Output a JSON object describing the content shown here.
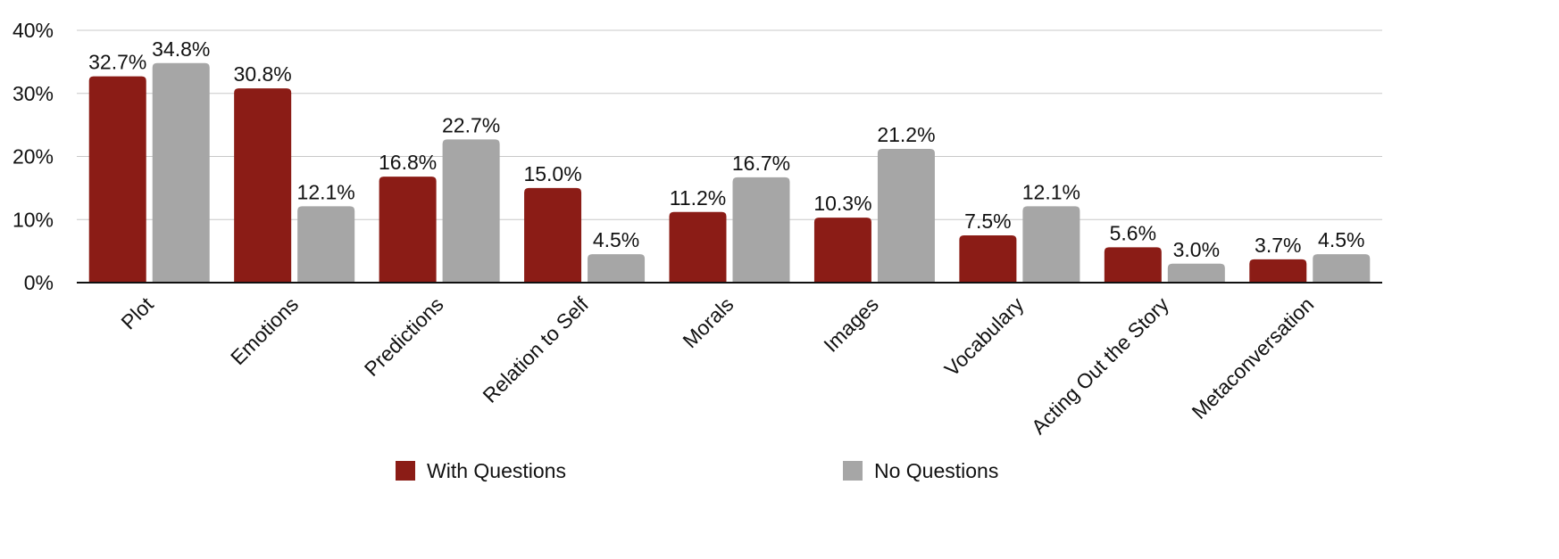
{
  "chart_data": {
    "type": "bar",
    "title": "",
    "xlabel": "",
    "ylabel": "",
    "ylim": [
      0,
      40
    ],
    "yticks": [
      0,
      10,
      20,
      30,
      40
    ],
    "ytick_labels": [
      "0%",
      "10%",
      "20%",
      "30%",
      "40%"
    ],
    "grid": true,
    "legend_position": "bottom",
    "categories": [
      "Plot",
      "Emotions",
      "Predictions",
      "Relation to Self",
      "Morals",
      "Images",
      "Vocabulary",
      "Acting Out the Story",
      "Metaconversation"
    ],
    "series": [
      {
        "name": "With Questions",
        "color": "#8b1c16",
        "values": [
          32.7,
          30.8,
          16.8,
          15.0,
          11.2,
          10.3,
          7.5,
          5.6,
          3.7
        ],
        "labels": [
          "32.7%",
          "30.8%",
          "16.8%",
          "15.0%",
          "11.2%",
          "10.3%",
          "7.5%",
          "5.6%",
          "3.7%"
        ]
      },
      {
        "name": "No Questions",
        "color": "#a6a6a6",
        "values": [
          34.8,
          12.1,
          22.7,
          4.5,
          16.7,
          21.2,
          12.1,
          3.0,
          4.5
        ],
        "labels": [
          "34.8%",
          "12.1%",
          "22.7%",
          "4.5%",
          "16.7%",
          "21.2%",
          "12.1%",
          "3.0%",
          "4.5%"
        ]
      }
    ]
  }
}
